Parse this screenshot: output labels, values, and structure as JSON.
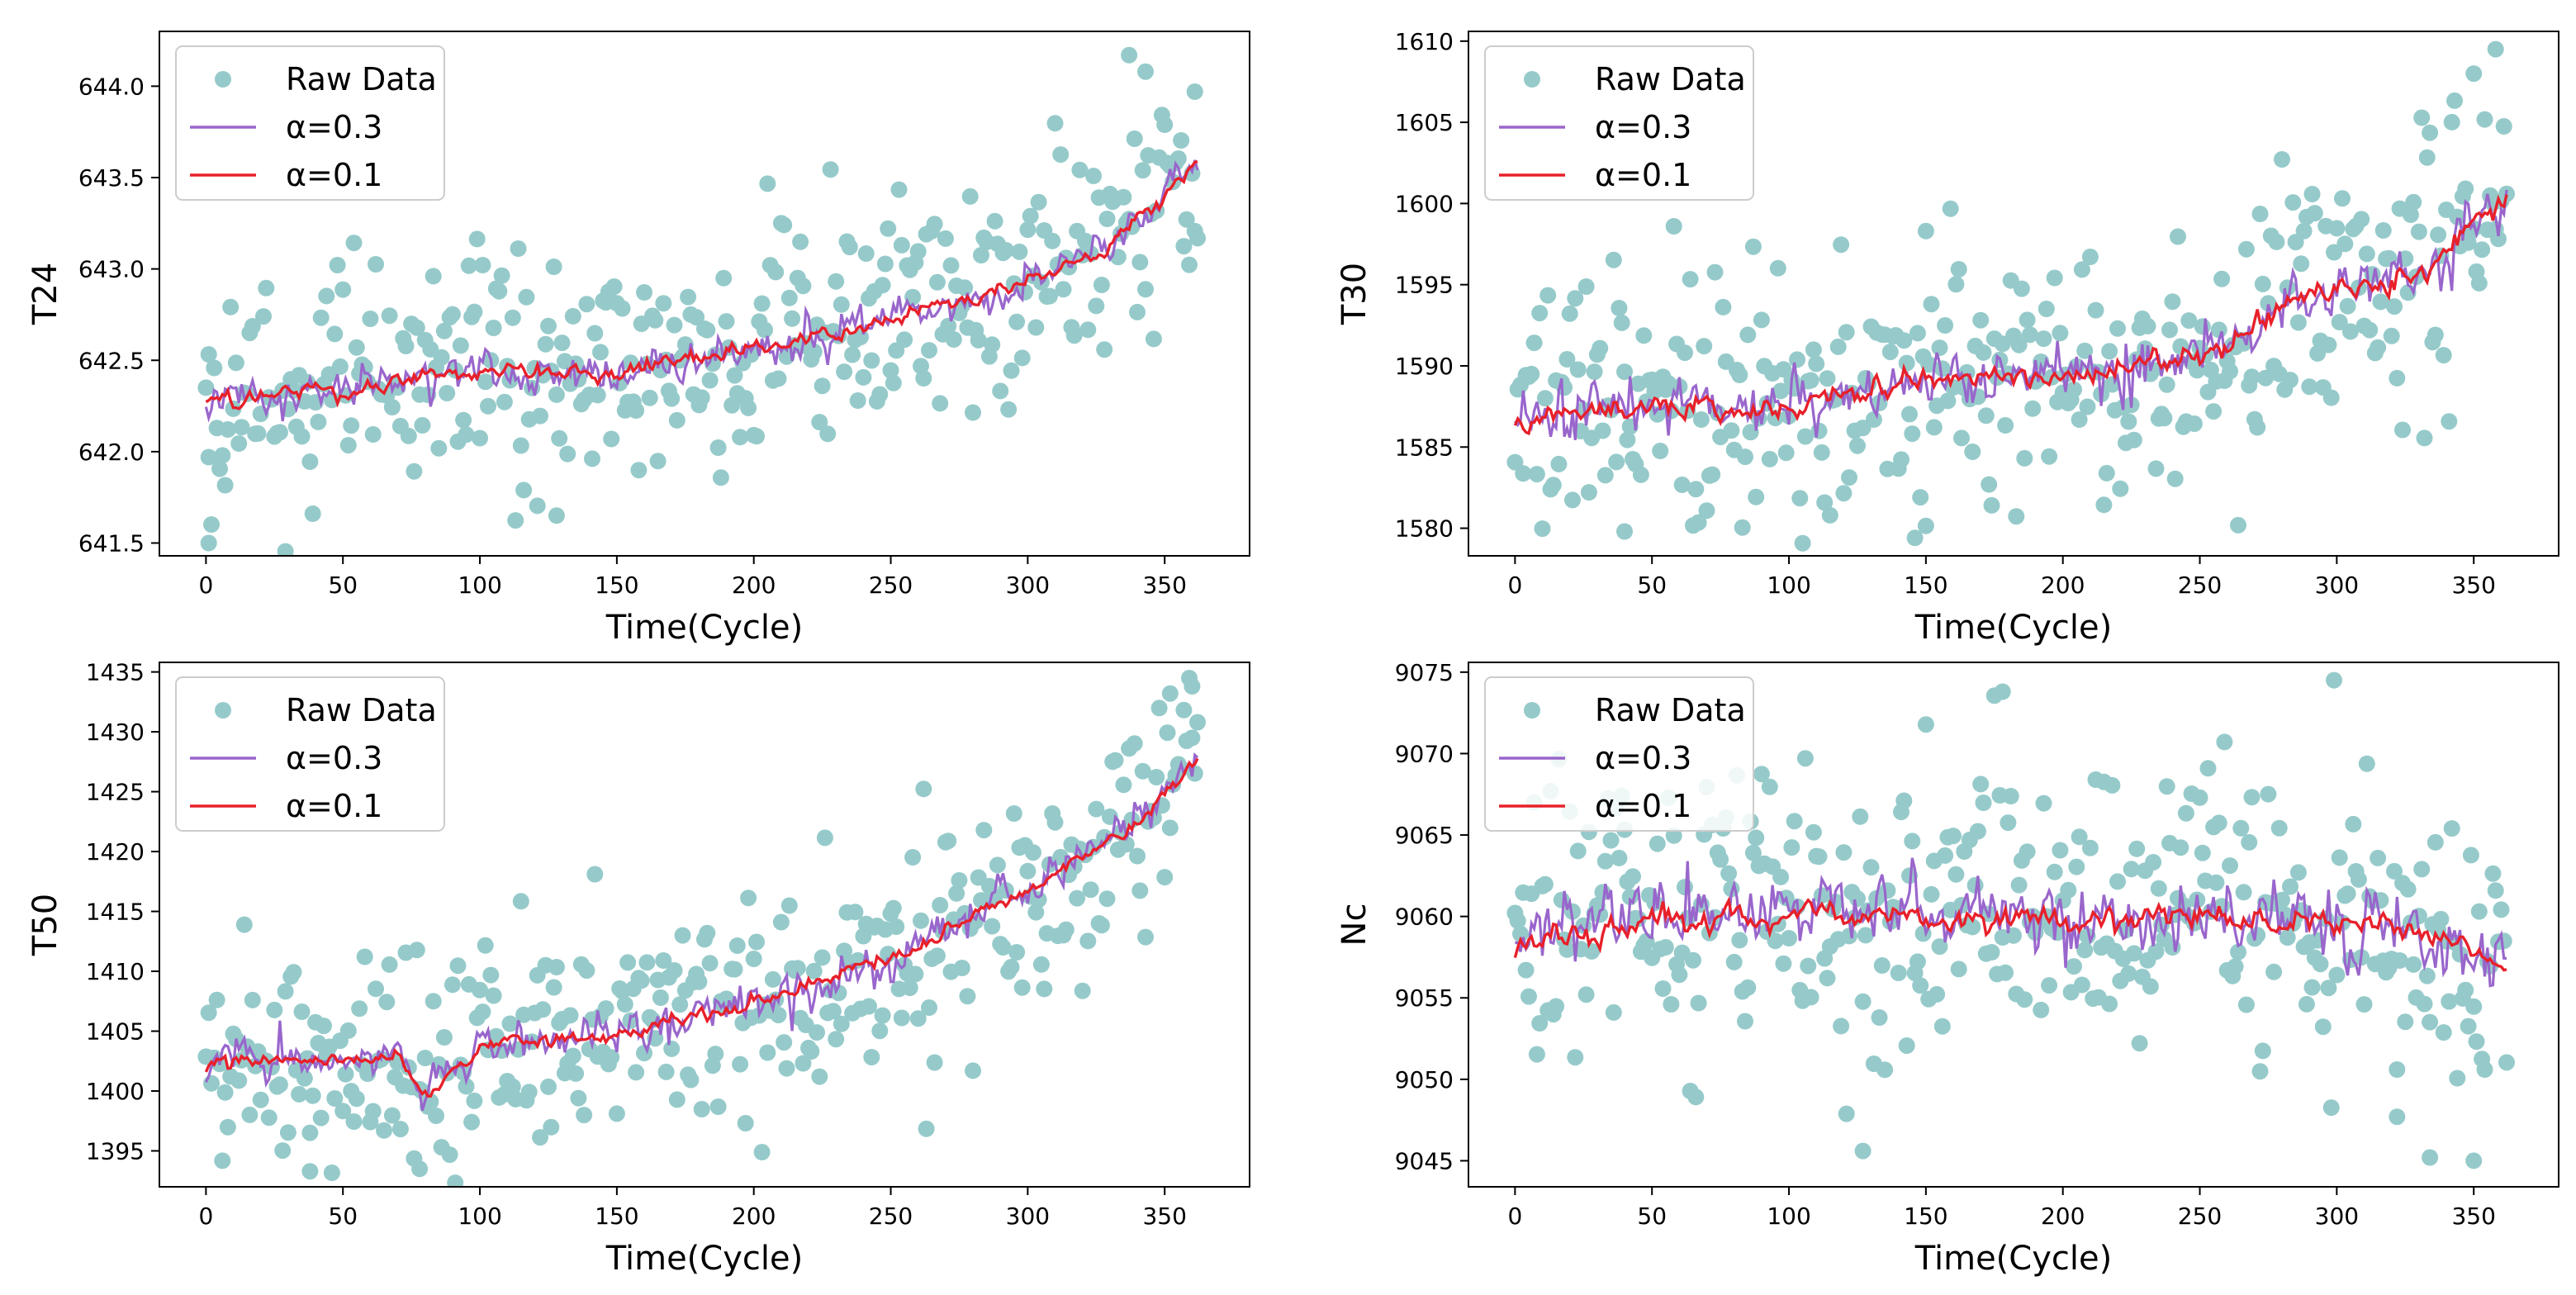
{
  "colors": {
    "raw": "#96CACA",
    "alpha03": "#9966CC",
    "alpha01": "#E8202A"
  },
  "legend": {
    "raw": "Raw Data",
    "alpha03": "α=0.3",
    "alpha01": "α=0.1",
    "placement": "upper-left"
  },
  "chart_data": [
    {
      "type": "scatter",
      "ylabel": "T24",
      "xlabel": "Time(Cycle)",
      "xlim": [
        -17,
        381
      ],
      "ylim": [
        641.43,
        644.3
      ],
      "xticks": [
        0,
        50,
        100,
        150,
        200,
        250,
        300,
        350
      ],
      "yticks": [
        641.5,
        642.0,
        642.5,
        643.0,
        643.5,
        644.0
      ],
      "ytick_labels": [
        "641.5",
        "642.0",
        "642.5",
        "643.0",
        "643.5",
        "644.0"
      ],
      "trend_knots": [
        [
          0,
          642.28
        ],
        [
          50,
          642.35
        ],
        [
          100,
          642.45
        ],
        [
          150,
          642.42
        ],
        [
          200,
          642.58
        ],
        [
          250,
          642.72
        ],
        [
          300,
          642.92
        ],
        [
          330,
          643.15
        ],
        [
          362,
          643.6
        ]
      ],
      "raw_noise": 0.32,
      "alpha03_noise": 0.08,
      "alpha01_noise": 0.04,
      "highlights": [
        [
          1,
          641.5
        ],
        [
          1,
          641.97
        ],
        [
          128,
          641.65
        ],
        [
          337,
          644.17
        ],
        [
          343,
          644.08
        ],
        [
          361,
          643.97
        ]
      ],
      "series": [
        {
          "name": "Raw Data",
          "kind": "scatter"
        },
        {
          "name": "α=0.3",
          "kind": "line"
        },
        {
          "name": "α=0.1",
          "kind": "line"
        }
      ]
    },
    {
      "type": "scatter",
      "ylabel": "T30",
      "xlabel": "Time(Cycle)",
      "xlim": [
        -17,
        381
      ],
      "ylim": [
        1578.3,
        1610.6
      ],
      "xticks": [
        0,
        50,
        100,
        150,
        200,
        250,
        300,
        350
      ],
      "yticks": [
        1580,
        1585,
        1590,
        1595,
        1600,
        1605,
        1610
      ],
      "ytick_labels": [
        "1580",
        "1585",
        "1590",
        "1595",
        "1600",
        "1605",
        "1610"
      ],
      "trend_knots": [
        [
          0,
          1587.0
        ],
        [
          50,
          1587.5
        ],
        [
          100,
          1587.5
        ],
        [
          150,
          1589.3
        ],
        [
          200,
          1589.5
        ],
        [
          250,
          1590.5
        ],
        [
          275,
          1593.0
        ],
        [
          300,
          1594.5
        ],
        [
          330,
          1595.8
        ],
        [
          362,
          1600.5
        ]
      ],
      "raw_noise": 4.2,
      "alpha03_noise": 1.3,
      "alpha01_noise": 0.7,
      "highlights": [
        [
          40,
          1579.8
        ],
        [
          350,
          1608.0
        ],
        [
          358,
          1609.5
        ],
        [
          150,
          1598.3
        ]
      ],
      "series": [
        {
          "name": "Raw Data",
          "kind": "scatter"
        },
        {
          "name": "α=0.3",
          "kind": "line"
        },
        {
          "name": "α=0.1",
          "kind": "line"
        }
      ]
    },
    {
      "type": "scatter",
      "ylabel": "T50",
      "xlabel": "Time(Cycle)",
      "xlim": [
        -17,
        381
      ],
      "ylim": [
        1392.0,
        1435.8
      ],
      "xticks": [
        0,
        50,
        100,
        150,
        200,
        250,
        300,
        350
      ],
      "yticks": [
        1395,
        1400,
        1405,
        1410,
        1415,
        1420,
        1425,
        1430,
        1435
      ],
      "ytick_labels": [
        "1395",
        "1400",
        "1405",
        "1410",
        "1415",
        "1420",
        "1425",
        "1430",
        "1435"
      ],
      "trend_knots": [
        [
          0,
          1402.5
        ],
        [
          50,
          1402.5
        ],
        [
          70,
          1402.8
        ],
        [
          78,
          1399.5
        ],
        [
          100,
          1403.8
        ],
        [
          150,
          1404.8
        ],
        [
          200,
          1407.5
        ],
        [
          250,
          1411.0
        ],
        [
          300,
          1417.0
        ],
        [
          340,
          1422.5
        ],
        [
          362,
          1428.5
        ]
      ],
      "raw_noise": 4.5,
      "alpha03_noise": 1.2,
      "alpha01_noise": 0.6,
      "highlights": [
        [
          38,
          1393.3
        ],
        [
          78,
          1393.5
        ],
        [
          360,
          1433.8
        ],
        [
          352,
          1433.2
        ]
      ],
      "series": [
        {
          "name": "Raw Data",
          "kind": "scatter"
        },
        {
          "name": "α=0.3",
          "kind": "line"
        },
        {
          "name": "α=0.1",
          "kind": "line"
        }
      ]
    },
    {
      "type": "scatter",
      "ylabel": "Nc",
      "xlabel": "Time(Cycle)",
      "xlim": [
        -17,
        381
      ],
      "ylim": [
        9043.4,
        9075.6
      ],
      "xticks": [
        0,
        50,
        100,
        150,
        200,
        250,
        300,
        350
      ],
      "yticks": [
        9045,
        9050,
        9055,
        9060,
        9065,
        9070,
        9075
      ],
      "ytick_labels": [
        "9045",
        "9050",
        "9055",
        "9060",
        "9065",
        "9070",
        "9075"
      ],
      "trend_knots": [
        [
          0,
          9058.5
        ],
        [
          50,
          9059.8
        ],
        [
          100,
          9060.2
        ],
        [
          150,
          9060.0
        ],
        [
          200,
          9060.0
        ],
        [
          250,
          9059.8
        ],
        [
          300,
          9059.5
        ],
        [
          330,
          9059.0
        ],
        [
          362,
          9056.8
        ]
      ],
      "raw_noise": 4.5,
      "alpha03_noise": 1.6,
      "alpha01_noise": 0.8,
      "highlights": [
        [
          178,
          9073.8
        ],
        [
          127,
          9045.6
        ],
        [
          350,
          9045.0
        ],
        [
          334,
          9045.2
        ],
        [
          322,
          9047.7
        ]
      ],
      "series": [
        {
          "name": "Raw Data",
          "kind": "scatter"
        },
        {
          "name": "α=0.3",
          "kind": "line"
        },
        {
          "name": "α=0.1",
          "kind": "line"
        }
      ]
    }
  ]
}
